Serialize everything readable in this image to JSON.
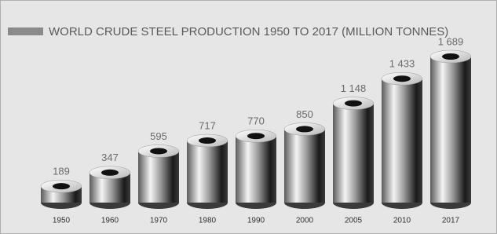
{
  "chart_data": {
    "type": "bar",
    "title": "WORLD CRUDE STEEL PRODUCTION 1950 TO 2017 (MILLION TONNES)",
    "categories": [
      "1950",
      "1960",
      "1970",
      "1980",
      "1990",
      "2000",
      "2005",
      "2010",
      "2017"
    ],
    "values": [
      189,
      347,
      595,
      717,
      770,
      850,
      1148,
      1433,
      1689
    ],
    "value_labels": [
      "189",
      "347",
      "595",
      "717",
      "770",
      "850",
      "1 148",
      "1 433",
      "1 689"
    ],
    "color": "#7a7a7a"
  }
}
